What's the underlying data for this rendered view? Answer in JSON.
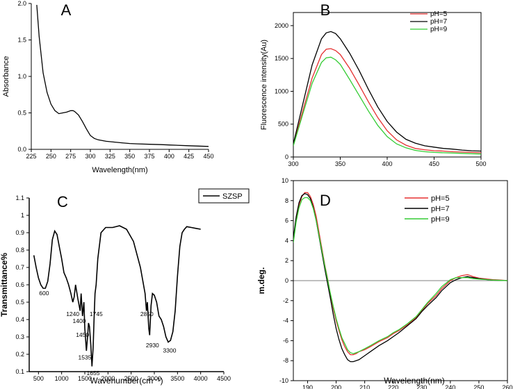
{
  "chart_data": [
    {
      "panel": "A",
      "type": "line",
      "title": "",
      "xlabel": "Wavelength(nm)",
      "ylabel": "Absorbance",
      "xlim": [
        225,
        450
      ],
      "ylim": [
        0.0,
        2.0
      ],
      "xticks": [
        "225",
        "250",
        "275",
        "300",
        "325",
        "350",
        "375",
        "400",
        "425",
        "450"
      ],
      "yticks": [
        "0.0",
        "0.5",
        "1.0",
        "1.5",
        "2.0"
      ],
      "series": [
        {
          "name": "absorbance",
          "color": "#000000",
          "x": [
            232,
            235,
            240,
            245,
            250,
            255,
            260,
            265,
            270,
            275,
            278,
            280,
            285,
            290,
            295,
            300,
            305,
            310,
            320,
            330,
            340,
            350,
            360,
            375,
            390,
            400,
            425,
            450
          ],
          "y": [
            1.98,
            1.55,
            1.05,
            0.78,
            0.62,
            0.53,
            0.49,
            0.5,
            0.51,
            0.53,
            0.53,
            0.52,
            0.47,
            0.38,
            0.28,
            0.19,
            0.15,
            0.13,
            0.11,
            0.1,
            0.09,
            0.08,
            0.075,
            0.07,
            0.065,
            0.06,
            0.05,
            0.04
          ]
        }
      ]
    },
    {
      "panel": "B",
      "type": "line",
      "title": "",
      "xlabel": "",
      "ylabel": "Fluorescence intensity(Au)",
      "xlim": [
        300,
        500
      ],
      "ylim": [
        0,
        2200
      ],
      "xticks": [
        "300",
        "350",
        "400",
        "450",
        "500"
      ],
      "yticks": [
        "0",
        "500",
        "1000",
        "1500",
        "2000"
      ],
      "legend": "top-right",
      "series": [
        {
          "name": "pH=5",
          "color": "#e53030",
          "x": [
            300,
            310,
            320,
            330,
            335,
            340,
            345,
            350,
            360,
            370,
            380,
            390,
            400,
            410,
            420,
            430,
            440,
            450,
            460,
            470,
            480,
            490,
            500
          ],
          "y": [
            180,
            700,
            1200,
            1560,
            1640,
            1650,
            1620,
            1560,
            1350,
            1100,
            840,
            600,
            400,
            260,
            180,
            130,
            110,
            95,
            90,
            80,
            75,
            70,
            65
          ]
        },
        {
          "name": "pH=7",
          "color": "#000000",
          "x": [
            300,
            310,
            320,
            330,
            335,
            340,
            345,
            350,
            360,
            370,
            380,
            390,
            400,
            410,
            420,
            430,
            440,
            450,
            460,
            470,
            480,
            490,
            500
          ],
          "y": [
            200,
            800,
            1400,
            1800,
            1890,
            1910,
            1880,
            1800,
            1580,
            1320,
            1030,
            760,
            540,
            380,
            270,
            210,
            170,
            150,
            130,
            120,
            105,
            95,
            90
          ]
        },
        {
          "name": "pH=9",
          "color": "#33cc33",
          "x": [
            300,
            310,
            320,
            330,
            335,
            340,
            345,
            350,
            360,
            370,
            380,
            390,
            400,
            410,
            420,
            430,
            440,
            450,
            460,
            470,
            480,
            490,
            500
          ],
          "y": [
            170,
            650,
            1120,
            1440,
            1510,
            1520,
            1480,
            1410,
            1180,
            940,
            700,
            480,
            310,
            200,
            140,
            100,
            80,
            70,
            65,
            60,
            55,
            50,
            45
          ]
        }
      ]
    },
    {
      "panel": "C",
      "type": "line",
      "title": "",
      "xlabel": "Wavenumber(cm⁻¹)",
      "ylabel": "Transmittance%",
      "xlim": [
        300,
        4500
      ],
      "ylim": [
        0.1,
        1.1
      ],
      "xticks": [
        "500",
        "1000",
        "1500",
        "2000",
        "2500",
        "3000",
        "3500",
        "4000",
        "4500"
      ],
      "yticks": [
        "0.1",
        "0.2",
        "0.3",
        "0.4",
        "0.5",
        "0.6",
        "0.7",
        "0.8",
        "0.9",
        "1",
        "1.1"
      ],
      "legend": "top-center",
      "series": [
        {
          "name": "SZSP",
          "color": "#000000",
          "x": [
            400,
            450,
            500,
            550,
            600,
            650,
            700,
            750,
            800,
            850,
            900,
            950,
            1000,
            1050,
            1100,
            1150,
            1200,
            1240,
            1270,
            1300,
            1350,
            1400,
            1420,
            1450,
            1480,
            1500,
            1535,
            1560,
            1580,
            1600,
            1630,
            1655,
            1680,
            1700,
            1720,
            1745,
            1780,
            1850,
            1950,
            2100,
            2250,
            2400,
            2550,
            2700,
            2800,
            2830,
            2850,
            2880,
            2900,
            2930,
            2960,
            3000,
            3050,
            3100,
            3150,
            3200,
            3250,
            3300,
            3350,
            3400,
            3450,
            3500,
            3550,
            3600,
            3650,
            3700,
            3800,
            3900,
            4000
          ],
          "y": [
            0.77,
            0.7,
            0.64,
            0.6,
            0.58,
            0.58,
            0.62,
            0.72,
            0.86,
            0.91,
            0.89,
            0.82,
            0.75,
            0.67,
            0.64,
            0.6,
            0.55,
            0.5,
            0.53,
            0.6,
            0.52,
            0.45,
            0.55,
            0.42,
            0.5,
            0.35,
            0.22,
            0.3,
            0.38,
            0.36,
            0.25,
            0.13,
            0.24,
            0.4,
            0.55,
            0.6,
            0.75,
            0.9,
            0.93,
            0.93,
            0.94,
            0.92,
            0.85,
            0.7,
            0.55,
            0.45,
            0.5,
            0.35,
            0.31,
            0.48,
            0.55,
            0.54,
            0.5,
            0.42,
            0.4,
            0.36,
            0.3,
            0.27,
            0.28,
            0.33,
            0.45,
            0.65,
            0.82,
            0.9,
            0.92,
            0.935,
            0.93,
            0.925,
            0.92
          ]
        }
      ],
      "annotations": [
        {
          "text": "600",
          "x": 620,
          "y": 0.54
        },
        {
          "text": "1240",
          "x": 1240,
          "y": 0.42
        },
        {
          "text": "1400",
          "x": 1380,
          "y": 0.38
        },
        {
          "text": "1450",
          "x": 1450,
          "y": 0.3
        },
        {
          "text": "1745",
          "x": 1745,
          "y": 0.42
        },
        {
          "text": "1535",
          "x": 1500,
          "y": 0.17
        },
        {
          "text": "1655",
          "x": 1680,
          "y": 0.08
        },
        {
          "text": "2850",
          "x": 2840,
          "y": 0.42
        },
        {
          "text": "2930",
          "x": 2960,
          "y": 0.24
        },
        {
          "text": "3300",
          "x": 3330,
          "y": 0.21
        }
      ]
    },
    {
      "panel": "D",
      "type": "line",
      "title": "",
      "xlabel": "Wavelength(nm)",
      "ylabel": "m.deg.",
      "xlim": [
        185,
        260
      ],
      "ylim": [
        -10,
        10
      ],
      "xticks": [
        "190",
        "200",
        "210",
        "220",
        "230",
        "240",
        "250",
        "260"
      ],
      "yticks": [
        "10",
        "8",
        "6",
        "4",
        "2",
        "0",
        "-2",
        "-4",
        "-6",
        "-8",
        "-10"
      ],
      "legend": "top-right",
      "series": [
        {
          "name": "pH=5",
          "color": "#e53030",
          "x": [
            185,
            186,
            187,
            188,
            189,
            190,
            191,
            192,
            193,
            194,
            195,
            196,
            197,
            198,
            199,
            200,
            201,
            202,
            203,
            204,
            205,
            206,
            207,
            208,
            210,
            212,
            215,
            218,
            220,
            222,
            225,
            228,
            230,
            232,
            235,
            237,
            240,
            242,
            244,
            245,
            246,
            247,
            248,
            250,
            253,
            255,
            258,
            260
          ],
          "y": [
            4.0,
            6.2,
            7.6,
            8.4,
            8.8,
            8.8,
            8.4,
            7.6,
            6.4,
            4.8,
            3.2,
            1.6,
            0.2,
            -1.4,
            -2.8,
            -4.0,
            -5.0,
            -5.9,
            -6.6,
            -7.1,
            -7.4,
            -7.4,
            -7.3,
            -7.1,
            -6.9,
            -6.6,
            -6.1,
            -5.7,
            -5.3,
            -5.0,
            -4.4,
            -3.7,
            -3.0,
            -2.3,
            -1.5,
            -0.8,
            0.0,
            0.3,
            0.5,
            0.55,
            0.6,
            0.5,
            0.4,
            0.25,
            0.15,
            0.1,
            0.05,
            0.0
          ]
        },
        {
          "name": "pH=7",
          "color": "#000000",
          "x": [
            185,
            186,
            187,
            188,
            189,
            190,
            191,
            192,
            193,
            194,
            195,
            196,
            197,
            198,
            199,
            200,
            201,
            202,
            203,
            204,
            205,
            206,
            207,
            208,
            210,
            212,
            215,
            218,
            220,
            222,
            225,
            228,
            230,
            232,
            235,
            237,
            240,
            242,
            244,
            245,
            246,
            247,
            248,
            250,
            253,
            255,
            258,
            260
          ],
          "y": [
            4.2,
            6.4,
            7.8,
            8.5,
            8.7,
            8.6,
            8.2,
            7.3,
            6.0,
            4.4,
            2.8,
            1.2,
            -0.3,
            -1.8,
            -3.4,
            -4.8,
            -5.9,
            -6.8,
            -7.4,
            -7.9,
            -8.1,
            -8.1,
            -8.0,
            -7.9,
            -7.5,
            -7.1,
            -6.5,
            -6.0,
            -5.6,
            -5.2,
            -4.5,
            -3.8,
            -3.1,
            -2.5,
            -1.7,
            -1.0,
            -0.2,
            0.1,
            0.3,
            0.35,
            0.4,
            0.35,
            0.3,
            0.2,
            0.1,
            0.05,
            0.02,
            0.0
          ]
        },
        {
          "name": "pH=9",
          "color": "#33cc33",
          "x": [
            185,
            186,
            187,
            188,
            189,
            190,
            191,
            192,
            193,
            194,
            195,
            196,
            197,
            198,
            199,
            200,
            201,
            202,
            203,
            204,
            205,
            206,
            207,
            208,
            210,
            212,
            215,
            218,
            220,
            222,
            225,
            228,
            230,
            232,
            235,
            237,
            240,
            242,
            244,
            245,
            246,
            247,
            248,
            250,
            253,
            255,
            258,
            260
          ],
          "y": [
            3.8,
            5.9,
            7.3,
            8.1,
            8.3,
            8.3,
            8.0,
            7.2,
            6.0,
            4.5,
            3.0,
            1.5,
            0.1,
            -1.3,
            -2.6,
            -3.8,
            -4.8,
            -5.7,
            -6.3,
            -6.9,
            -7.2,
            -7.3,
            -7.2,
            -7.1,
            -6.8,
            -6.5,
            -6.0,
            -5.6,
            -5.2,
            -4.9,
            -4.3,
            -3.6,
            -2.9,
            -2.2,
            -1.3,
            -0.6,
            0.1,
            0.3,
            0.3,
            0.3,
            0.3,
            0.25,
            0.2,
            0.15,
            0.1,
            0.05,
            0.02,
            0.0
          ]
        }
      ]
    }
  ]
}
